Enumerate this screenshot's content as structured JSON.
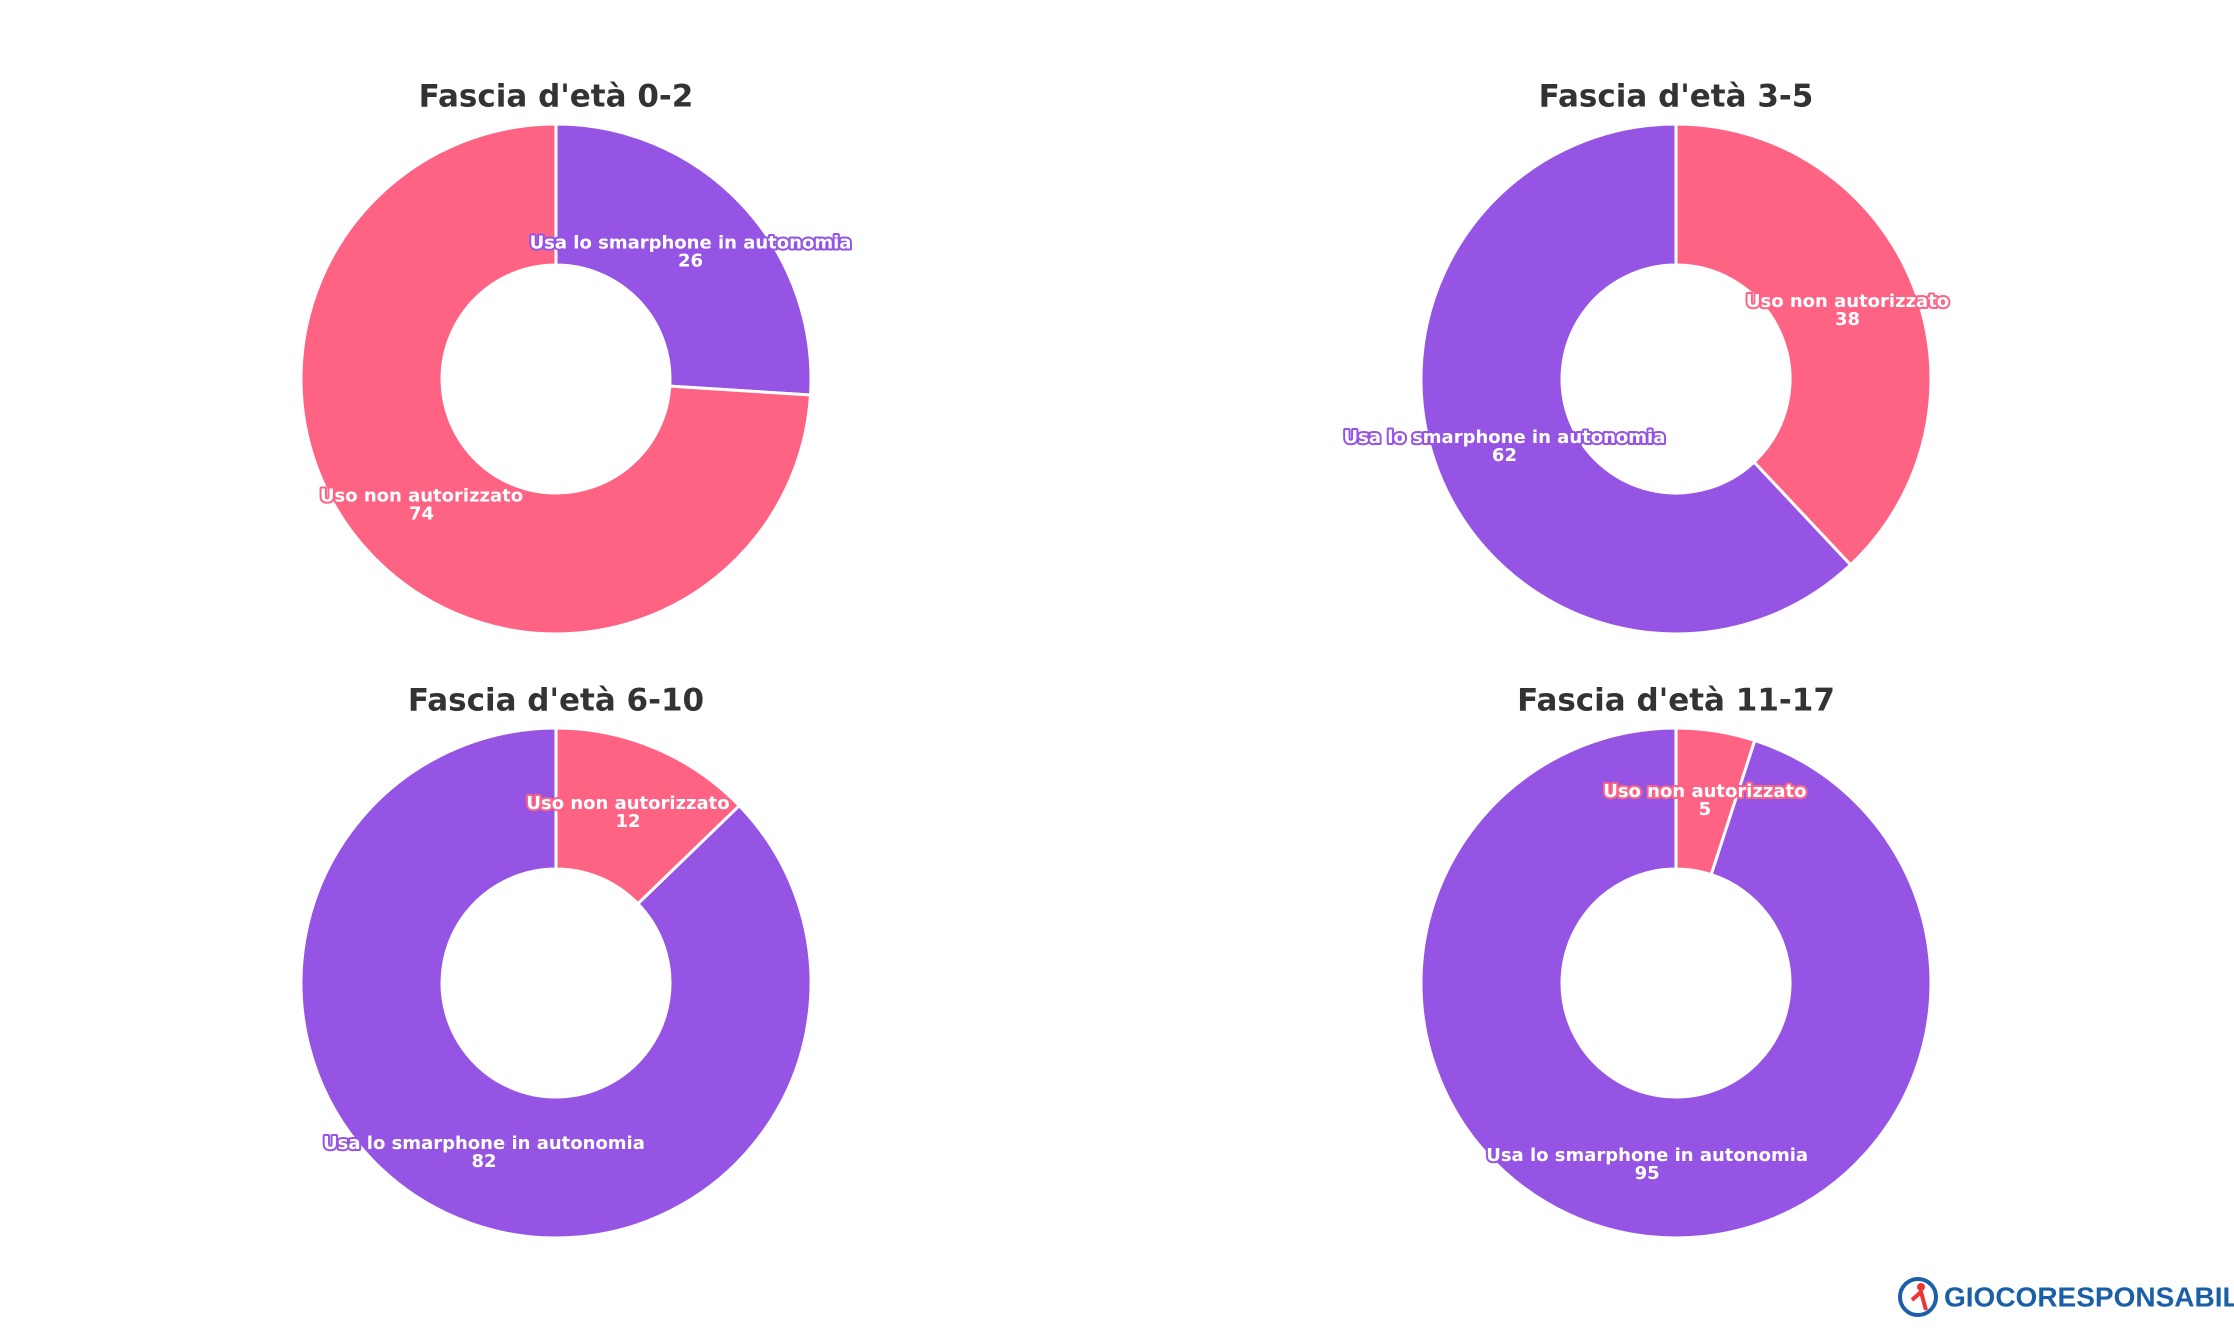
{
  "chart_data": [
    {
      "type": "donut",
      "title": "Fascia d'età 0-2",
      "categories": [
        "Usa lo smarphone in autonomia",
        "Uso non autorizzato"
      ],
      "values": [
        26,
        74
      ],
      "colors": [
        "#9554e3",
        "#ff6384"
      ]
    },
    {
      "type": "donut",
      "title": "Fascia d'età 3-5",
      "categories": [
        "Uso non autorizzato",
        "Usa lo smarphone in autonomia"
      ],
      "values": [
        38,
        62
      ],
      "colors": [
        "#ff6384",
        "#9554e3"
      ]
    },
    {
      "type": "donut",
      "title": "Fascia d'età 6-10",
      "categories": [
        "Uso non autorizzato",
        "Usa lo smarphone in autonomia"
      ],
      "values": [
        12,
        82
      ],
      "colors": [
        "#ff6384",
        "#9554e3"
      ]
    },
    {
      "type": "donut",
      "title": "Fascia d'età 11-17",
      "categories": [
        "Uso non autorizzato",
        "Usa lo smarphone in autonomia"
      ],
      "values": [
        5,
        95
      ],
      "colors": [
        "#ff6384",
        "#9554e3"
      ]
    }
  ],
  "logo": "GIOCORESPONSABILE.INFO"
}
